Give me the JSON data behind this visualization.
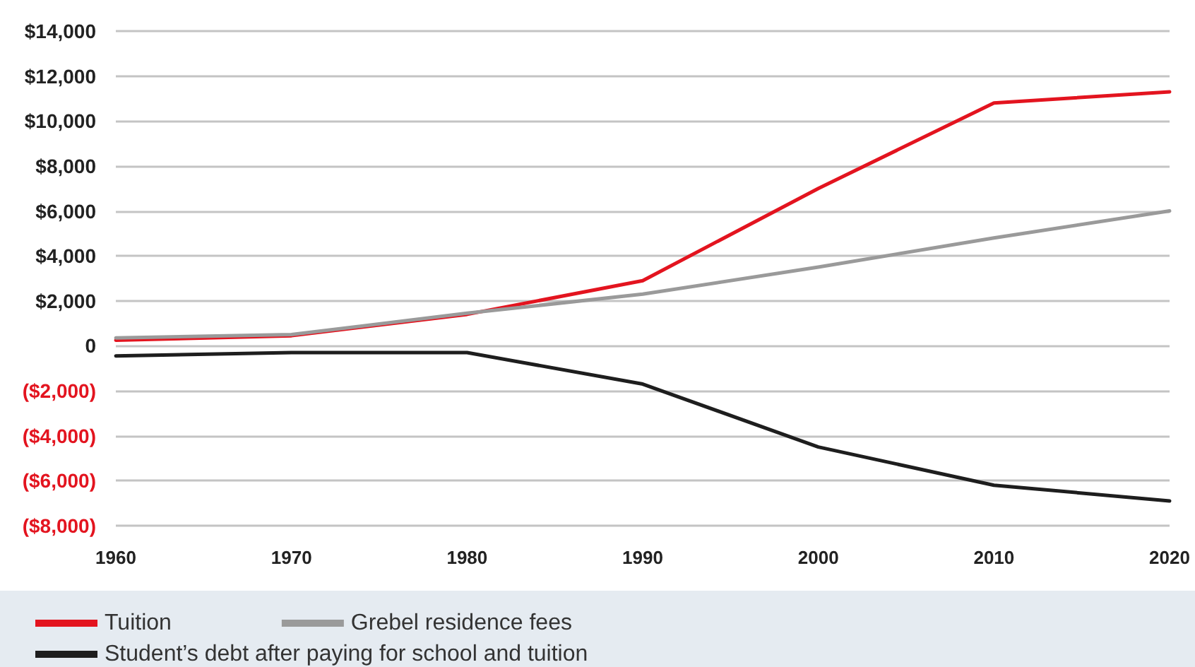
{
  "chart_data": {
    "type": "line",
    "categories": [
      "1960",
      "1970",
      "1980",
      "1990",
      "2000",
      "2010",
      "2020"
    ],
    "series": [
      {
        "name": "Tuition",
        "color": "#e3141f",
        "values": [
          250,
          450,
          1400,
          2900,
          7000,
          10800,
          11300
        ]
      },
      {
        "name": "Grebel residence fees",
        "color": "#9a9a9a",
        "values": [
          350,
          500,
          1450,
          2300,
          3500,
          4800,
          6000
        ]
      },
      {
        "name": "Student’s debt after paying for school and tuition",
        "color": "#1e1e1e",
        "values": [
          -450,
          -300,
          -300,
          -1700,
          -4500,
          -6200,
          -6900
        ]
      }
    ],
    "ylim": [
      -8000,
      14000
    ],
    "yticks": [
      {
        "value": -8000,
        "label": "($8,000)"
      },
      {
        "value": -6000,
        "label": "($6,000)"
      },
      {
        "value": -4000,
        "label": "($4,000)"
      },
      {
        "value": -2000,
        "label": "($2,000)"
      },
      0,
      {
        "value": 2000,
        "label": "$2,000"
      },
      {
        "value": 4000,
        "label": "$4,000"
      },
      {
        "value": 6000,
        "label": "$6,000"
      },
      {
        "value": 8000,
        "label": "$8,000"
      },
      {
        "value": 10000,
        "label": "$10,000"
      },
      {
        "value": 12000,
        "label": "$12,000"
      },
      {
        "value": 14000,
        "label": "$14,000"
      }
    ],
    "grid": "y",
    "legend": "bottom",
    "marker": "none",
    "line_style": "solid"
  }
}
